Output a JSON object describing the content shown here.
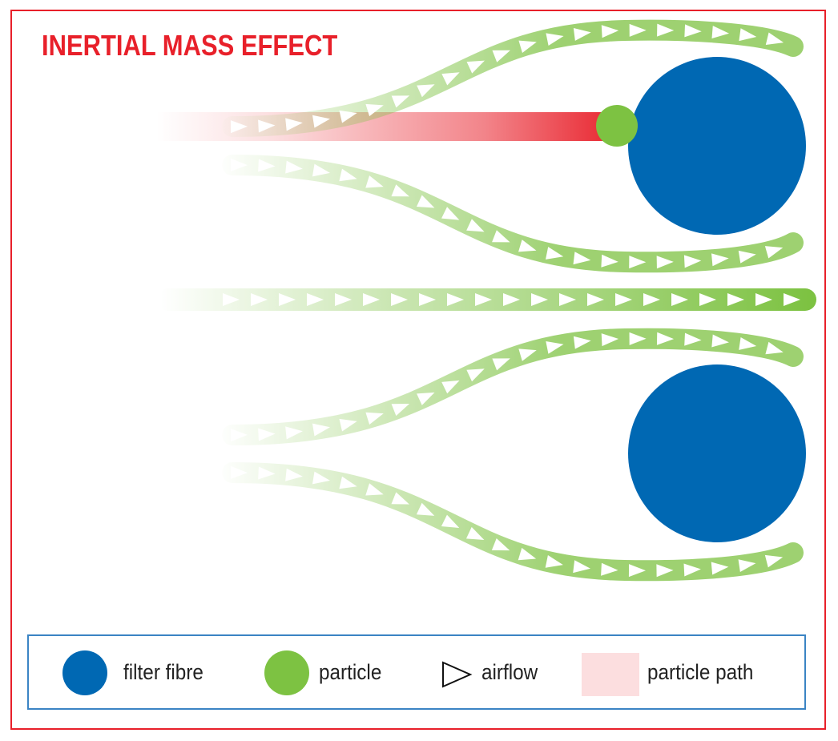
{
  "title": "INERTIAL MASS EFFECT",
  "colors": {
    "title": "#e8202a",
    "frame": "#e8202a",
    "legend_border": "#3b84c4",
    "fibre": "#0068b3",
    "particle": "#7dc242",
    "airflow_stream": "#7dc242",
    "particle_path": "#e8202a"
  },
  "legend": {
    "fibre_label": "filter fibre",
    "particle_label": "particle",
    "airflow_label": "airflow",
    "path_label": "particle path"
  }
}
